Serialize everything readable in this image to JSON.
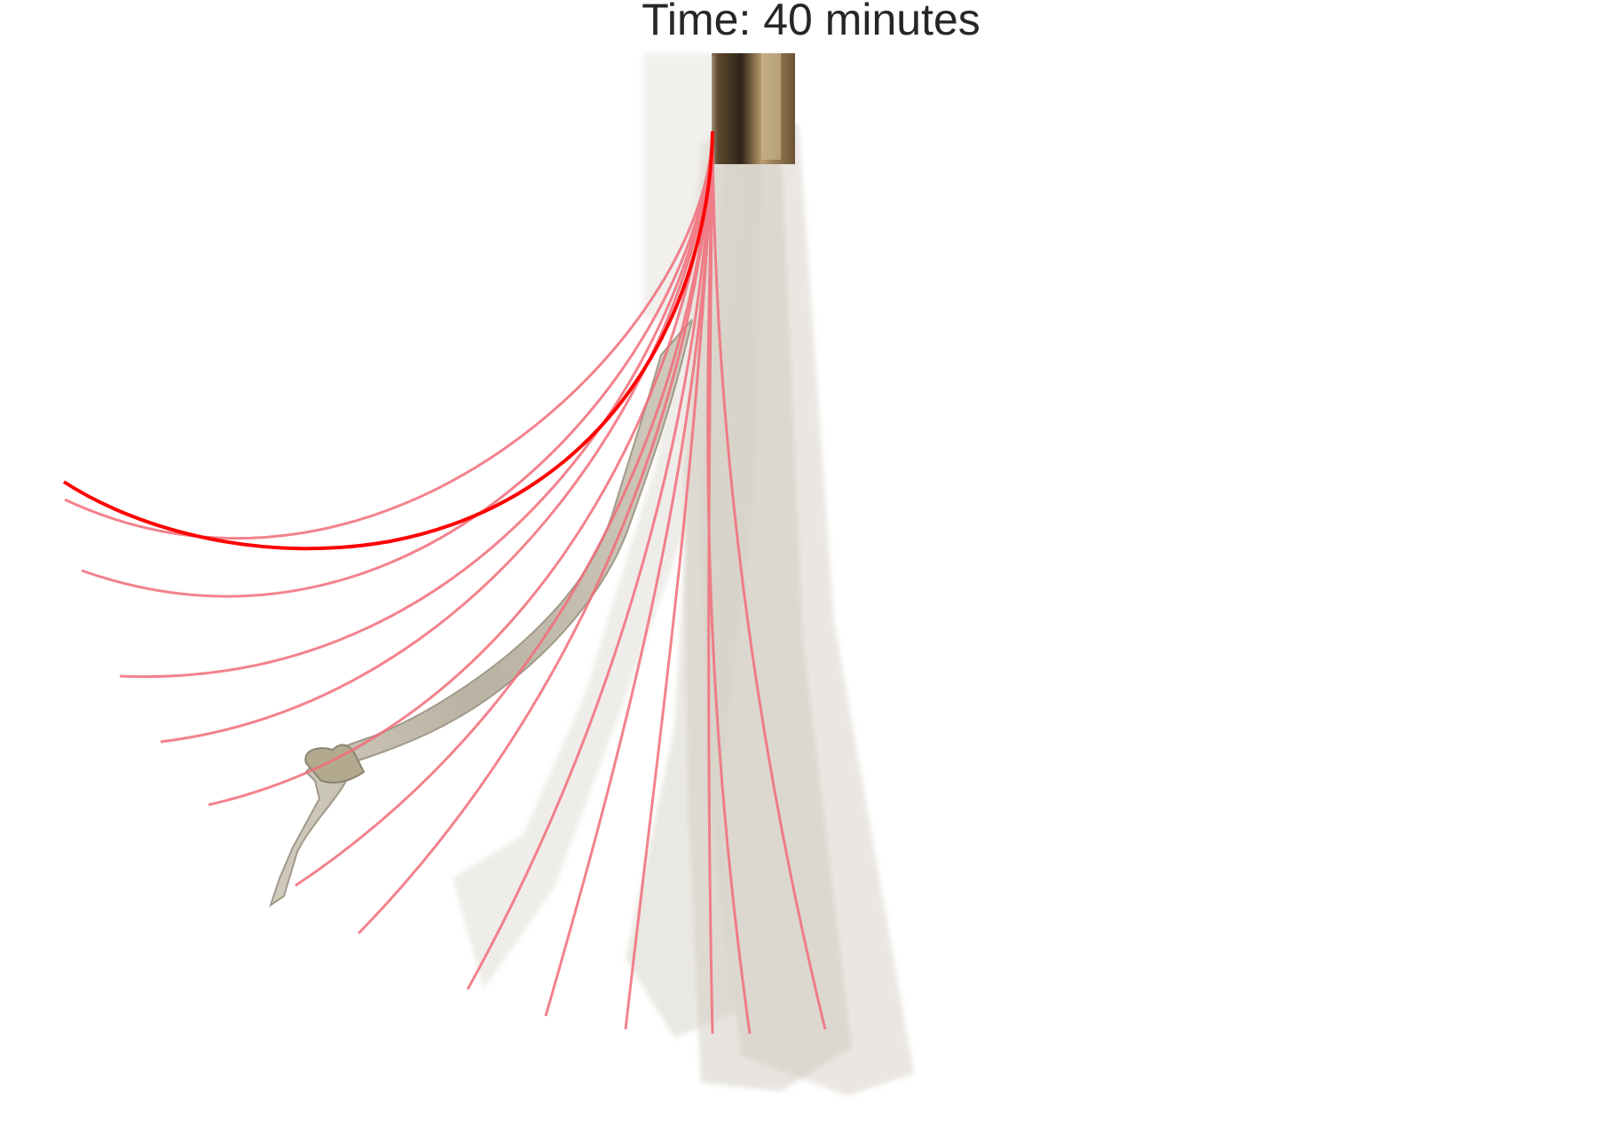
{
  "figure": {
    "title": "Time: 40 minutes"
  },
  "colors": {
    "background": "#ffffff",
    "title_text": "#262626",
    "current_curve": "#ff0000",
    "previous_curves": "#f26d7a",
    "bone_fill": "#b8b2a2",
    "bone_shadow": "#8c8472",
    "stem_dark": "#4a3722",
    "stem_light": "#9a7c54"
  },
  "scene": {
    "description_icon": "bending-bone-stack"
  }
}
